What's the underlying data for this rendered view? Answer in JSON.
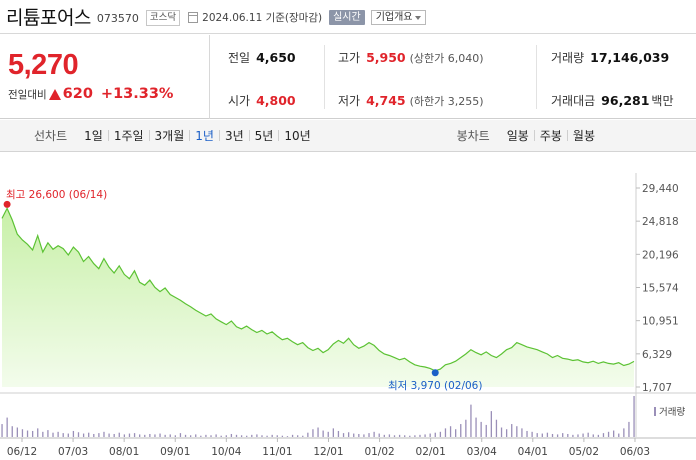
{
  "header": {
    "stock_name": "리튬포어스",
    "stock_code": "073570",
    "market": "코스닥",
    "date": "2024.06.11 기준(장마감)",
    "realtime_label": "실시간",
    "overview_label": "기업개요"
  },
  "quote": {
    "price": "5,270",
    "change_label": "전일대비",
    "change": "620",
    "change_rate": "+13.33%",
    "prev_label": "전일",
    "prev_value": "4,650",
    "high_label": "고가",
    "high_value": "5,950",
    "upper_limit": "(상한가 6,040)",
    "volume_label": "거래량",
    "volume_value": "17,146,039",
    "open_label": "시가",
    "open_value": "4,800",
    "low_label": "저가",
    "low_value": "4,745",
    "lower_limit": "(하한가 3,255)",
    "amount_label": "거래대금",
    "amount_value": "96,281",
    "amount_unit": "백만"
  },
  "periods": {
    "line_label": "선차트",
    "line_items": [
      "1일",
      "1주일",
      "3개월",
      "1년",
      "3년",
      "5년",
      "10년"
    ],
    "active": "1년",
    "candle_label": "봉차트",
    "candle_items": [
      "일봉",
      "주봉",
      "월봉"
    ]
  },
  "colors": {
    "up": "#e0242b",
    "down": "#1b5fc7",
    "line": "#5cc234",
    "area": "#e7f9d6",
    "volume": "#9a8fb8"
  },
  "chart_data": {
    "type": "area",
    "x_ticks": [
      "06/12",
      "07/03",
      "08/01",
      "09/01",
      "10/04",
      "11/01",
      "12/01",
      "01/02",
      "02/01",
      "03/04",
      "04/01",
      "05/02",
      "06/03"
    ],
    "y_ticks": [
      29440,
      24818,
      20196,
      15574,
      10951,
      6329,
      1707
    ],
    "y_tick_labels": [
      "29,440",
      "24,818",
      "20,196",
      "15,574",
      "10,951",
      "6,329",
      "1,707"
    ],
    "ylim": [
      1707,
      29440
    ],
    "high_label": "최고 26,600 (06/14)",
    "high_value": 26600,
    "low_label": "최저 3,970 (02/06)",
    "low_value": 3970,
    "volume_legend": "거래량",
    "x": [
      0,
      2,
      4,
      6,
      8,
      10,
      12,
      14,
      16,
      18,
      20,
      22,
      24,
      26,
      28,
      30,
      32,
      34,
      36,
      38,
      40,
      42,
      44,
      46,
      48,
      50,
      52,
      54,
      56,
      58,
      60,
      62,
      64,
      66,
      68,
      70,
      72,
      74,
      76,
      78,
      80,
      82,
      84,
      86,
      88,
      90,
      92,
      94,
      96,
      98,
      100,
      102,
      104,
      106,
      108,
      110,
      112,
      114,
      116,
      118,
      120,
      122,
      124,
      126,
      128,
      130,
      132,
      134,
      136,
      138,
      140,
      142,
      144,
      146,
      148,
      150,
      152,
      154,
      156,
      158,
      160,
      162,
      164,
      166,
      168,
      170,
      172,
      174,
      176,
      178,
      180,
      182,
      184,
      186,
      188,
      190,
      192,
      194,
      196,
      198,
      200,
      202,
      204,
      206,
      208,
      210,
      212,
      214,
      216,
      218,
      220,
      222,
      224,
      226,
      228,
      230,
      232,
      234,
      236,
      238,
      240,
      242,
      244,
      246,
      248
    ],
    "values": [
      25200,
      26600,
      25000,
      23000,
      22200,
      21600,
      20800,
      22800,
      20500,
      21800,
      20900,
      21400,
      21000,
      20100,
      21200,
      20500,
      19200,
      19900,
      18900,
      18200,
      19600,
      18400,
      17600,
      18600,
      17400,
      16800,
      17900,
      16300,
      15900,
      16600,
      15600,
      15000,
      15500,
      14600,
      14200,
      13800,
      13300,
      12900,
      12400,
      12000,
      11600,
      11900,
      11200,
      10800,
      10400,
      10900,
      10100,
      9800,
      10200,
      9700,
      9300,
      9600,
      9100,
      9400,
      8800,
      8300,
      8500,
      8000,
      7600,
      7900,
      7200,
      6800,
      7100,
      6500,
      6900,
      7700,
      8200,
      7800,
      8500,
      7600,
      7100,
      7400,
      7900,
      7500,
      6800,
      6300,
      6100,
      5800,
      5500,
      5700,
      5200,
      4800,
      4600,
      4500,
      4300,
      3970,
      4200,
      4800,
      5000,
      5300,
      5800,
      6300,
      6900,
      6500,
      6200,
      6600,
      6100,
      5800,
      6300,
      6900,
      7200,
      7900,
      7600,
      7300,
      7100,
      6900,
      6600,
      6300,
      5800,
      6100,
      5700,
      5600,
      5400,
      5500,
      5200,
      5100,
      5300,
      5000,
      5200,
      5000,
      4900,
      5100,
      4700,
      4900,
      5270
    ],
    "volume": [
      30,
      45,
      25,
      22,
      18,
      15,
      14,
      20,
      12,
      16,
      10,
      12,
      9,
      8,
      14,
      11,
      8,
      10,
      7,
      9,
      12,
      8,
      7,
      10,
      6,
      8,
      9,
      6,
      5,
      7,
      6,
      8,
      5,
      6,
      4,
      9,
      5,
      4,
      6,
      3,
      5,
      4,
      6,
      3,
      4,
      7,
      5,
      4,
      3,
      5,
      6,
      4,
      3,
      5,
      4,
      3,
      2,
      5,
      4,
      3,
      10,
      18,
      22,
      15,
      12,
      20,
      14,
      9,
      11,
      8,
      7,
      6,
      9,
      12,
      8,
      5,
      6,
      4,
      5,
      4,
      3,
      4,
      5,
      6,
      8,
      10,
      12,
      20,
      25,
      18,
      30,
      40,
      75,
      45,
      35,
      28,
      60,
      40,
      22,
      18,
      30,
      25,
      20,
      14,
      12,
      9,
      8,
      10,
      7,
      6,
      9,
      7,
      5,
      6,
      8,
      10,
      6,
      5,
      9,
      12,
      15,
      8,
      20,
      35,
      95
    ]
  }
}
